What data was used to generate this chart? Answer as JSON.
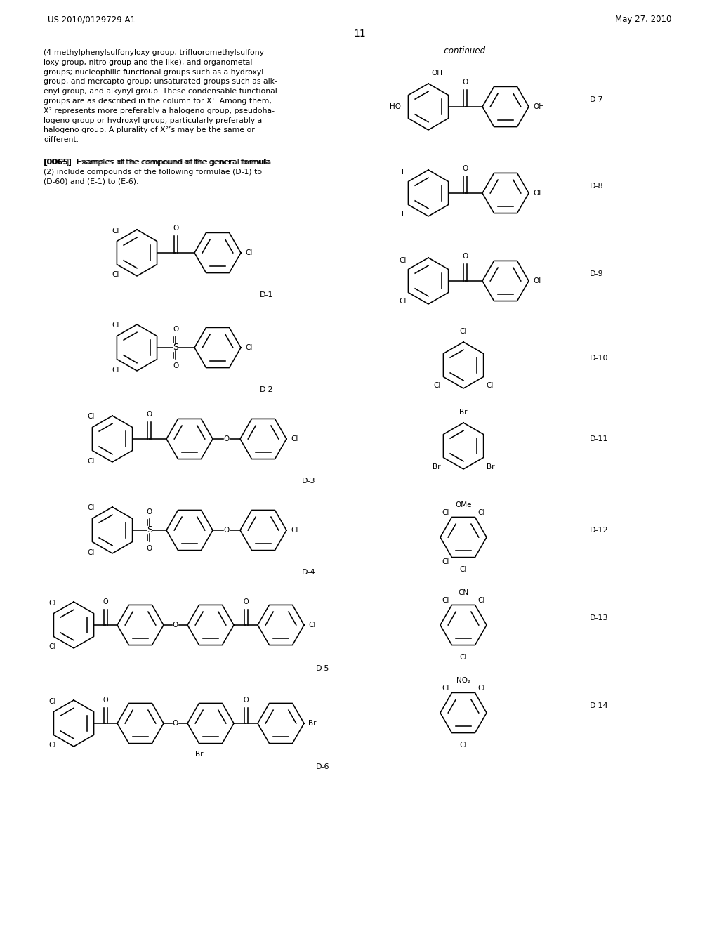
{
  "background_color": "#ffffff",
  "page_header_left": "US 2010/0129729 A1",
  "page_header_right": "May 27, 2010",
  "page_number": "11",
  "continued_label": "-continued",
  "figsize": [
    10.24,
    13.2
  ],
  "dpi": 100,
  "left_lines1": [
    "(4-methylphenylsulfonyloxy group, trifluoromethylsulfony-",
    "loxy group, nitro group and the like), and organometal",
    "groups; nucleophilic functional groups such as a hydroxyl",
    "group, and mercapto group; unsaturated groups such as alk-",
    "enyl group, and alkynyl group. These condensable functional",
    "groups are as described in the column for X¹. Among them,",
    "X² represents more preferably a halogeno group, pseudoha-",
    "logeno group or hydroxyl group, particularly preferably a",
    "halogeno group. A plurality of X²’s may be the same or",
    "different."
  ],
  "left_lines2": [
    "[0065]   Examples of the compound of the general formula",
    "(2) include compounds of the following formulae (D-1) to",
    "(D-60) and (E-1) to (E-6)."
  ]
}
